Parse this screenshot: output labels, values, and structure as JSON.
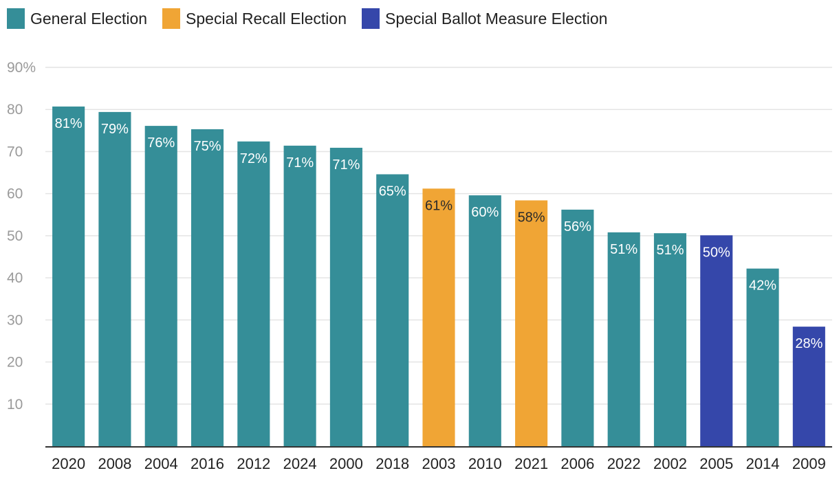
{
  "legend": [
    {
      "label": "General Election",
      "color": "#358E98"
    },
    {
      "label": "Special Recall Election",
      "color": "#F0A535"
    },
    {
      "label": "Special Ballot Measure Election",
      "color": "#3547AA"
    }
  ],
  "chart_data": {
    "type": "bar",
    "title": "",
    "xlabel": "",
    "ylabel": "",
    "ylim": [
      0,
      90
    ],
    "yticks": [
      10,
      20,
      30,
      40,
      50,
      60,
      70,
      80,
      90
    ],
    "ytick_labels": [
      "10",
      "20",
      "30",
      "40",
      "50",
      "60",
      "70",
      "80",
      "90%"
    ],
    "grid": true,
    "legend_position": "top-left",
    "categories": [
      "2020",
      "2008",
      "2004",
      "2016",
      "2012",
      "2024",
      "2000",
      "2018",
      "2003",
      "2010",
      "2021",
      "2006",
      "2022",
      "2002",
      "2005",
      "2014",
      "2009"
    ],
    "values": [
      80.7,
      79.4,
      76.1,
      75.3,
      72.4,
      71.4,
      70.9,
      64.6,
      61.2,
      59.6,
      58.4,
      56.2,
      50.8,
      50.6,
      50.1,
      42.2,
      28.4
    ],
    "data_labels": [
      "81%",
      "79%",
      "76%",
      "75%",
      "72%",
      "71%",
      "71%",
      "65%",
      "61%",
      "60%",
      "58%",
      "56%",
      "51%",
      "51%",
      "50%",
      "42%",
      "28%"
    ],
    "bar_types": [
      0,
      0,
      0,
      0,
      0,
      0,
      0,
      0,
      1,
      0,
      1,
      0,
      0,
      0,
      2,
      0,
      2
    ],
    "series_names": [
      "General Election",
      "Special Recall Election",
      "Special Ballot Measure Election"
    ]
  }
}
